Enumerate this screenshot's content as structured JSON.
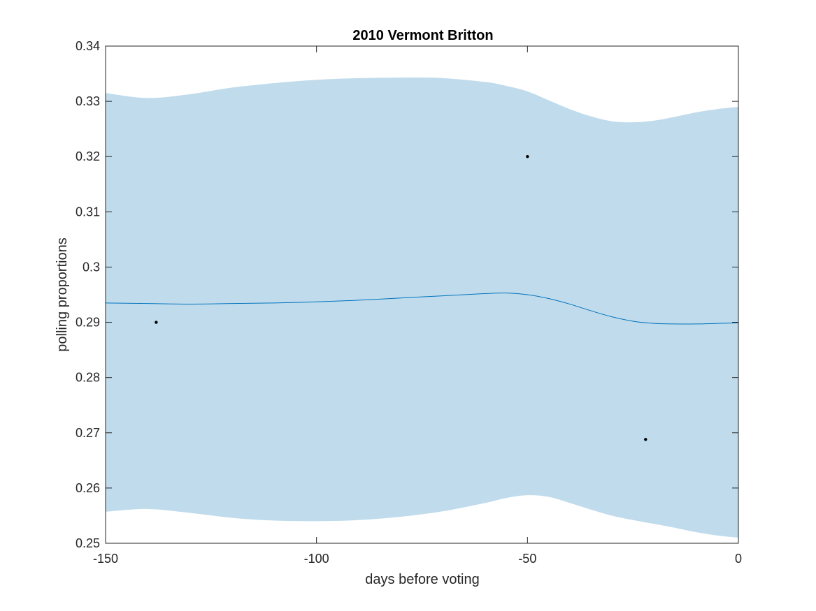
{
  "chart_data": {
    "type": "line",
    "title": "2010 Vermont Britton",
    "xlabel": "days before voting",
    "ylabel": "polling proportions",
    "xlim": [
      -150,
      0
    ],
    "ylim": [
      0.25,
      0.34
    ],
    "xticks": [
      -150,
      -100,
      -50,
      0
    ],
    "xtick_labels": [
      "-150",
      "-100",
      "-50",
      "0"
    ],
    "yticks": [
      0.25,
      0.26,
      0.27,
      0.28,
      0.29,
      0.3,
      0.31,
      0.32,
      0.33,
      0.34
    ],
    "ytick_labels": [
      "0.25",
      "0.26",
      "0.27",
      "0.28",
      "0.29",
      "0.3",
      "0.31",
      "0.32",
      "0.33",
      "0.34"
    ],
    "grid": false,
    "series": [
      {
        "kind": "line",
        "x": [
          -150,
          -140,
          -130,
          -120,
          -110,
          -100,
          -90,
          -80,
          -70,
          -60,
          -55,
          -50,
          -45,
          -40,
          -35,
          -30,
          -25,
          -20,
          -15,
          -10,
          -5,
          0
        ],
        "y": [
          0.2935,
          0.2934,
          0.2933,
          0.2934,
          0.2935,
          0.2937,
          0.294,
          0.2944,
          0.2948,
          0.2952,
          0.2953,
          0.295,
          0.2943,
          0.2933,
          0.2921,
          0.291,
          0.2902,
          0.2898,
          0.2897,
          0.2897,
          0.2898,
          0.2899
        ]
      },
      {
        "kind": "band",
        "x": [
          -150,
          -140,
          -130,
          -120,
          -110,
          -100,
          -90,
          -80,
          -70,
          -60,
          -55,
          -50,
          -45,
          -40,
          -35,
          -30,
          -25,
          -20,
          -15,
          -10,
          -5,
          0
        ],
        "upper": [
          0.3315,
          0.3306,
          0.3313,
          0.3325,
          0.3333,
          0.3339,
          0.3342,
          0.3343,
          0.3342,
          0.3335,
          0.3328,
          0.3318,
          0.3302,
          0.3286,
          0.3273,
          0.3264,
          0.3262,
          0.3265,
          0.3272,
          0.328,
          0.3286,
          0.329
        ],
        "lower": [
          0.2557,
          0.2562,
          0.2555,
          0.2546,
          0.2541,
          0.254,
          0.2542,
          0.2548,
          0.2558,
          0.2573,
          0.2582,
          0.2587,
          0.2584,
          0.2573,
          0.2561,
          0.255,
          0.2542,
          0.2535,
          0.2528,
          0.252,
          0.2514,
          0.251
        ]
      },
      {
        "kind": "scatter",
        "x": [
          -138,
          -50,
          -22
        ],
        "y": [
          0.29,
          0.32,
          0.2688
        ]
      }
    ],
    "colors": {
      "band": "#c0dcec",
      "line": "#0072bd",
      "points": "#000000",
      "axes": "#262626"
    }
  }
}
